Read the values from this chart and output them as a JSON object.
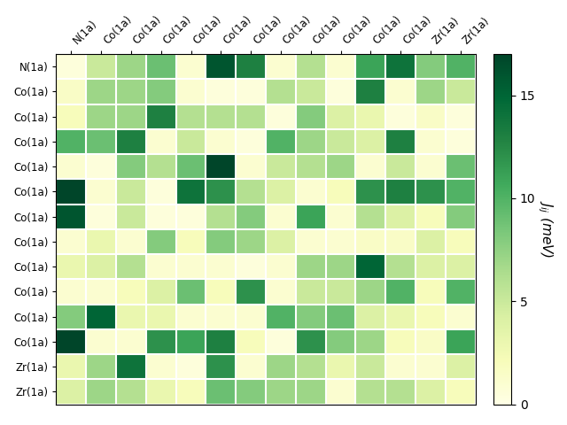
{
  "row_labels": [
    "N(1a)",
    "Co(1a)",
    "Co(1a)",
    "Co(1a)",
    "Co(1a)",
    "Co(1a)",
    "Co(1a)",
    "Co(1a)",
    "Co(1a)",
    "Co(1a)",
    "Co(1a)",
    "Co(1a)",
    "Zr(1a)",
    "Zr(1a)"
  ],
  "col_labels": [
    "N(1a)",
    "Co(1a)",
    "Co(1a)",
    "Co(1a)",
    "Co(1a)",
    "Co(1a)",
    "Co(1a)",
    "Co(1a)",
    "Co(1a)",
    "Co(1a)",
    "Co(1a)",
    "Co(1a)",
    "Zr(1a)",
    "Zr(1a)"
  ],
  "matrix": [
    [
      0.5,
      5.0,
      7.0,
      9.0,
      1.0,
      16.0,
      13.0,
      1.0,
      6.0,
      1.0,
      11.0,
      14.0,
      8.0,
      10.0
    ],
    [
      1.5,
      7.0,
      7.0,
      8.0,
      1.0,
      0.5,
      0.5,
      6.0,
      5.0,
      0.5,
      13.0,
      1.0,
      7.0,
      5.0
    ],
    [
      2.0,
      7.0,
      7.0,
      13.0,
      6.0,
      6.0,
      6.0,
      0.5,
      8.0,
      4.0,
      3.0,
      0.5,
      1.5,
      0.5
    ],
    [
      10.0,
      9.0,
      13.0,
      1.0,
      5.0,
      1.0,
      0.5,
      10.0,
      7.0,
      5.0,
      4.0,
      13.0,
      1.0,
      0.5
    ],
    [
      1.0,
      0.5,
      8.0,
      6.0,
      9.0,
      18.0,
      1.0,
      5.0,
      6.0,
      7.0,
      1.0,
      5.0,
      1.0,
      9.0
    ],
    [
      17.0,
      1.0,
      5.0,
      0.5,
      14.0,
      12.0,
      6.0,
      4.0,
      1.0,
      2.0,
      12.0,
      13.0,
      12.0,
      10.0
    ],
    [
      16.0,
      0.5,
      5.0,
      0.5,
      0.5,
      6.0,
      8.0,
      1.0,
      11.0,
      1.0,
      6.0,
      4.0,
      2.0,
      8.0
    ],
    [
      1.0,
      3.0,
      1.0,
      8.0,
      2.0,
      8.0,
      7.0,
      4.0,
      1.0,
      1.0,
      1.5,
      1.5,
      4.0,
      2.0
    ],
    [
      3.0,
      4.0,
      6.0,
      1.0,
      1.0,
      1.0,
      0.5,
      1.0,
      7.0,
      7.0,
      15.0,
      6.0,
      4.0,
      4.0
    ],
    [
      1.0,
      1.0,
      2.0,
      4.0,
      9.0,
      2.0,
      12.0,
      1.0,
      5.0,
      5.0,
      7.0,
      10.0,
      2.0,
      10.0
    ],
    [
      8.0,
      15.0,
      3.0,
      3.0,
      1.0,
      1.0,
      1.0,
      10.0,
      8.0,
      9.0,
      4.0,
      3.0,
      2.0,
      1.0
    ],
    [
      17.0,
      1.0,
      1.0,
      12.0,
      11.0,
      13.0,
      2.0,
      0.5,
      12.0,
      8.0,
      7.0,
      2.0,
      1.5,
      11.0
    ],
    [
      3.0,
      7.0,
      14.0,
      1.0,
      0.5,
      12.0,
      1.0,
      7.0,
      6.0,
      3.0,
      5.0,
      1.0,
      1.0,
      4.0
    ],
    [
      4.0,
      7.0,
      6.0,
      3.0,
      2.0,
      9.0,
      8.0,
      7.0,
      7.0,
      1.0,
      6.0,
      6.0,
      4.0,
      2.0
    ]
  ],
  "vmin": 0,
  "vmax": 17,
  "cmap": "YlGn",
  "colorbar_ticks": [
    0,
    5,
    10,
    15
  ],
  "colorbar_label": "$J_{ij}$ (meV)",
  "figsize": [
    6.4,
    4.8
  ],
  "dpi": 100
}
